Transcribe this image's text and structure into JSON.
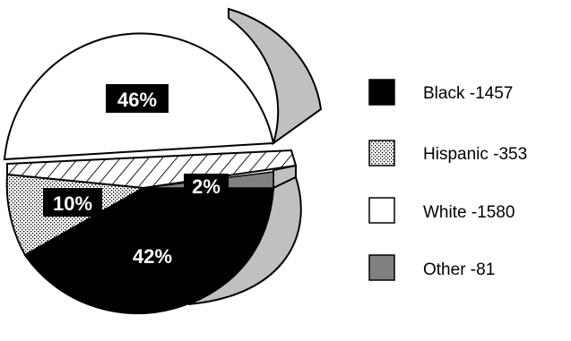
{
  "chart_data": {
    "type": "pie",
    "style": "3d-exploded",
    "legend_position": "right",
    "slices": [
      {
        "category": "Black",
        "legend": "Black -1457",
        "value": 1457,
        "percent_label": "42%",
        "fill": "#000000",
        "pattern": "solid"
      },
      {
        "category": "Hispanic",
        "legend": "Hispanic -353",
        "value": 353,
        "percent_label": "10%",
        "fill": "#ffffff",
        "pattern": "dots"
      },
      {
        "category": "White",
        "legend": "White -1580",
        "value": 1580,
        "percent_label": "46%",
        "fill": "#ffffff",
        "pattern": "solid"
      },
      {
        "category": "Other",
        "legend": "Other -81",
        "value": 81,
        "percent_label": "2%",
        "fill": "#808080",
        "pattern": "solid"
      }
    ]
  },
  "colors": {
    "side_wall": "#c0c0c0",
    "outline": "#000000",
    "label_box": "#000000",
    "label_text": "#ffffff"
  }
}
